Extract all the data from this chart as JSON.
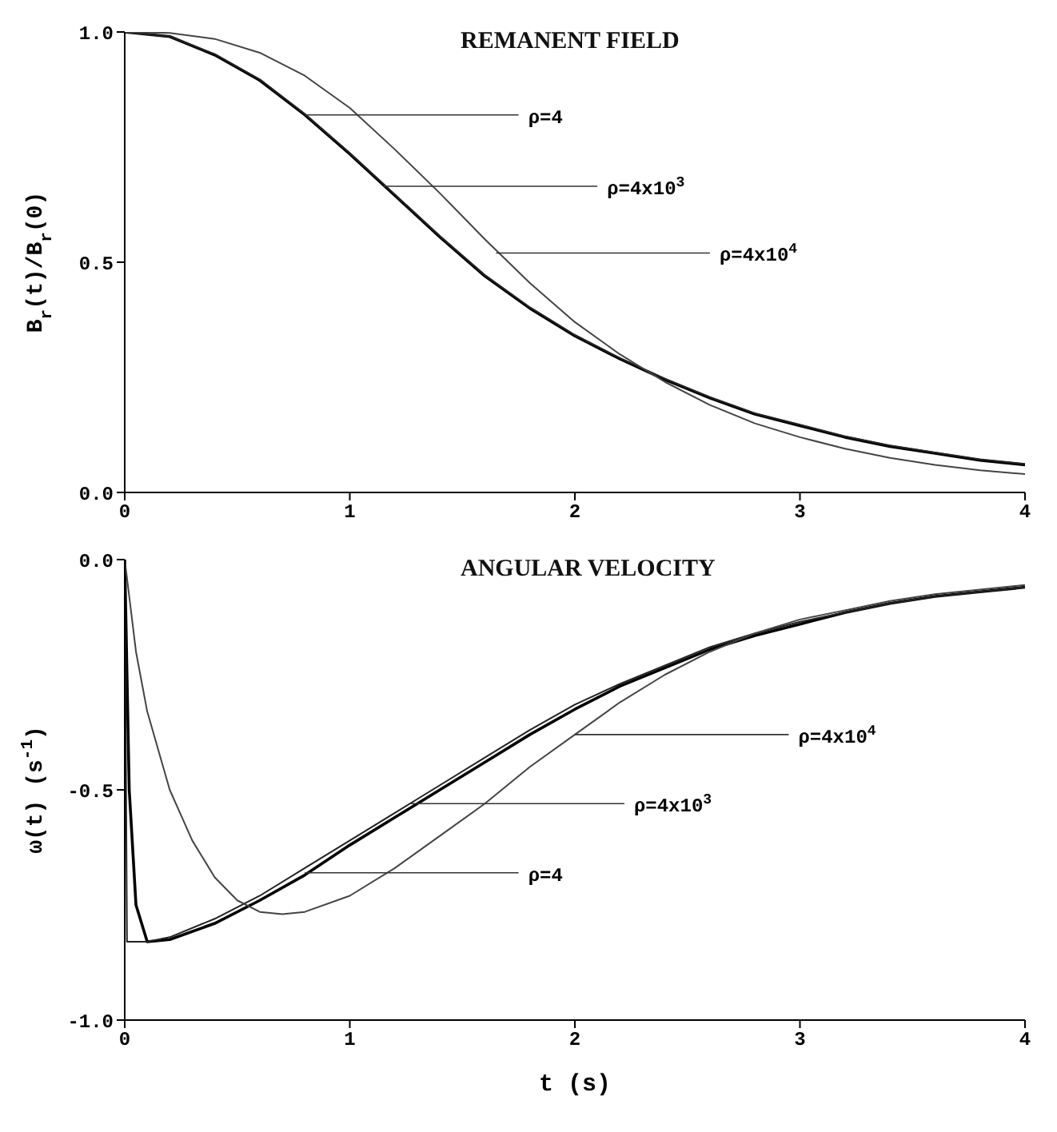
{
  "chart_data": [
    {
      "type": "line",
      "title": "REMANENT FIELD",
      "ylabel": "B$_{r}$(t)/B$_{r}$(0)",
      "xlim": [
        0,
        4
      ],
      "xticks": [
        0,
        1,
        2,
        3,
        4
      ],
      "ylim": [
        0,
        1
      ],
      "yticks": [
        {
          "value": 0,
          "label": "0.0"
        },
        {
          "value": 0.5,
          "label": "0.5"
        },
        {
          "value": 1,
          "label": "1.0"
        }
      ],
      "series": [
        {
          "color": "#000000",
          "x": [
            0,
            0.2,
            0.4,
            0.6,
            0.8,
            1,
            1.2,
            1.4,
            1.6,
            1.8,
            2,
            2.2,
            2.4,
            2.6,
            2.8,
            3,
            3.2,
            3.4,
            3.6,
            3.8,
            4
          ],
          "values": [
            1,
            0.99,
            0.95,
            0.895,
            0.82,
            0.735,
            0.645,
            0.555,
            0.47,
            0.4,
            0.34,
            0.29,
            0.245,
            0.205,
            0.17,
            0.145,
            0.12,
            0.1,
            0.085,
            0.07,
            0.06
          ]
        },
        {
          "color": "#222222",
          "x": [
            0,
            0.2,
            0.4,
            0.6,
            0.8,
            1,
            1.2,
            1.4,
            1.6,
            1.8,
            2,
            2.2,
            2.4,
            2.6,
            2.8,
            3,
            3.2,
            3.4,
            3.6,
            3.8,
            4
          ],
          "values": [
            1,
            0.99,
            0.952,
            0.897,
            0.822,
            0.737,
            0.647,
            0.557,
            0.472,
            0.402,
            0.342,
            0.292,
            0.247,
            0.207,
            0.172,
            0.147,
            0.122,
            0.102,
            0.087,
            0.072,
            0.062
          ]
        },
        {
          "color": "#444444",
          "x": [
            0,
            0.2,
            0.4,
            0.6,
            0.8,
            1,
            1.2,
            1.4,
            1.6,
            1.8,
            2,
            2.2,
            2.4,
            2.6,
            2.8,
            3,
            3.2,
            3.4,
            3.6,
            3.8,
            4
          ],
          "values": [
            1,
            0.998,
            0.985,
            0.955,
            0.905,
            0.835,
            0.745,
            0.65,
            0.55,
            0.455,
            0.37,
            0.3,
            0.24,
            0.19,
            0.15,
            0.12,
            0.095,
            0.075,
            0.06,
            0.048,
            0.04
          ]
        }
      ],
      "annotations": [
        {
          "text": "ρ=4",
          "x": 0.8,
          "y": 0.82
        },
        {
          "text": "ρ=4x10$^{3}$",
          "x": 1.15,
          "y": 0.665
        },
        {
          "text": "ρ=4x10$^{4}$",
          "x": 1.65,
          "y": 0.52
        }
      ]
    },
    {
      "type": "line",
      "title": "ANGULAR VELOCITY",
      "xlabel": "t (s)",
      "ylabel": "ω(t) (s$^{-1}$)",
      "xlim": [
        0,
        4
      ],
      "xticks": [
        0,
        1,
        2,
        3,
        4
      ],
      "ylim": [
        -1,
        0
      ],
      "yticks": [
        {
          "value": -1,
          "label": "-1.0"
        },
        {
          "value": -0.5,
          "label": "-0.5"
        },
        {
          "value": 0,
          "label": "0.0"
        }
      ],
      "series": [
        {
          "color": "#000000",
          "x": [
            0,
            0.02,
            0.05,
            0.1,
            0.2,
            0.4,
            0.6,
            0.8,
            1,
            1.2,
            1.4,
            1.6,
            1.8,
            2,
            2.2,
            2.4,
            2.6,
            2.8,
            3,
            3.2,
            3.4,
            3.6,
            3.8,
            4
          ],
          "values": [
            0,
            -0.5,
            -0.75,
            -0.83,
            -0.825,
            -0.79,
            -0.74,
            -0.685,
            -0.62,
            -0.56,
            -0.5,
            -0.44,
            -0.38,
            -0.325,
            -0.275,
            -0.235,
            -0.195,
            -0.165,
            -0.14,
            -0.115,
            -0.095,
            -0.08,
            -0.07,
            -0.06
          ]
        },
        {
          "color": "#222222",
          "x": [
            0,
            0.01,
            0.1,
            0.2,
            0.4,
            0.6,
            0.8,
            1,
            1.2,
            1.4,
            1.6,
            1.8,
            2,
            2.2,
            2.4,
            2.6,
            2.8,
            3,
            3.2,
            3.4,
            3.6,
            3.8,
            4
          ],
          "values": [
            0,
            -0.83,
            -0.83,
            -0.82,
            -0.78,
            -0.73,
            -0.67,
            -0.61,
            -0.55,
            -0.49,
            -0.43,
            -0.37,
            -0.315,
            -0.27,
            -0.23,
            -0.19,
            -0.16,
            -0.135,
            -0.115,
            -0.095,
            -0.08,
            -0.07,
            -0.06
          ]
        },
        {
          "color": "#444444",
          "x": [
            0,
            0.05,
            0.1,
            0.2,
            0.3,
            0.4,
            0.5,
            0.6,
            0.7,
            0.8,
            1,
            1.2,
            1.4,
            1.6,
            1.8,
            2,
            2.2,
            2.4,
            2.6,
            2.8,
            3,
            3.2,
            3.4,
            3.6,
            3.8,
            4
          ],
          "values": [
            0,
            -0.2,
            -0.33,
            -0.5,
            -0.61,
            -0.69,
            -0.74,
            -0.765,
            -0.77,
            -0.765,
            -0.73,
            -0.67,
            -0.6,
            -0.53,
            -0.45,
            -0.38,
            -0.31,
            -0.25,
            -0.2,
            -0.16,
            -0.13,
            -0.11,
            -0.09,
            -0.075,
            -0.065,
            -0.055
          ]
        }
      ],
      "annotations": [
        {
          "text": "ρ=4",
          "x": 0.8,
          "y": -0.68
        },
        {
          "text": "ρ=4x10$^{3}$",
          "x": 1.27,
          "y": -0.53
        },
        {
          "text": "ρ=4x10$^{4}$",
          "x": 2,
          "y": -0.38
        }
      ]
    }
  ]
}
